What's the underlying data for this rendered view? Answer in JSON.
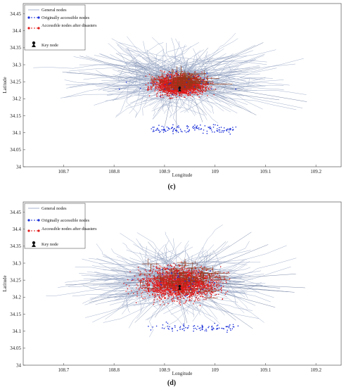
{
  "chart_data": [
    {
      "type": "scatter",
      "caption": "(c)",
      "xlabel": "Longitude",
      "ylabel": "Latitude",
      "xlim": [
        108.62,
        109.25
      ],
      "ylim": [
        34.0,
        34.48
      ],
      "xticks": [
        "108.7",
        "108.8",
        "108.9",
        "109",
        "109.1",
        "109.2"
      ],
      "yticks": [
        "34",
        "34.05",
        "34.1",
        "34.15",
        "34.2",
        "34.25",
        "34.3",
        "34.35",
        "34.4",
        "34.45"
      ],
      "legend": {
        "placement": "top-left",
        "entries": [
          "General nodes",
          "Originally accessible nodes",
          "Accessible nodes after disasters",
          "Key node"
        ]
      },
      "series": [
        {
          "name": "General nodes",
          "color": "#9aa8c6"
        },
        {
          "name": "Originally accessible nodes",
          "color": "#1a2fd8"
        },
        {
          "name": "Accessible nodes after disasters",
          "color": "#e01818"
        },
        {
          "name": "Key node",
          "color": "#111111"
        }
      ],
      "key_node": {
        "x": 108.93,
        "y": 34.23
      }
    },
    {
      "type": "scatter",
      "caption": "(d)",
      "xlabel": "Longitude",
      "ylabel": "Latitude",
      "xlim": [
        108.62,
        109.25
      ],
      "ylim": [
        34.0,
        34.48
      ],
      "xticks": [
        "108.7",
        "108.8",
        "108.9",
        "109",
        "109.1",
        "109.2"
      ],
      "yticks": [
        "34",
        "34.05",
        "34.1",
        "34.15",
        "34.2",
        "34.25",
        "34.3",
        "34.35",
        "34.4",
        "34.45"
      ],
      "legend": {
        "placement": "top-left",
        "entries": [
          "General nodes",
          "Originally accessible nodes",
          "Accessible nodes after disasters",
          "Key node"
        ]
      },
      "series": [
        {
          "name": "General nodes",
          "color": "#9aa8c6"
        },
        {
          "name": "Originally accessible nodes",
          "color": "#1a2fd8"
        },
        {
          "name": "Accessible nodes after disasters",
          "color": "#e01818"
        },
        {
          "name": "Key node",
          "color": "#111111"
        }
      ],
      "key_node": {
        "x": 108.93,
        "y": 34.23
      }
    }
  ]
}
